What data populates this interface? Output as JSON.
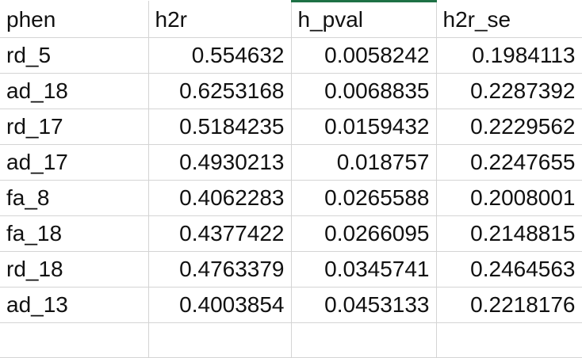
{
  "spreadsheet": {
    "selected_column_index": 2,
    "accent_color": "#1e7145",
    "columns": [
      "phen",
      "h2r",
      "h_pval",
      "h2r_se"
    ],
    "rows": [
      [
        "rd_5",
        "0.554632",
        "0.0058242",
        "0.1984113"
      ],
      [
        "ad_18",
        "0.6253168",
        "0.0068835",
        "0.2287392"
      ],
      [
        "rd_17",
        "0.5184235",
        "0.0159432",
        "0.2229562"
      ],
      [
        "ad_17",
        "0.4930213",
        "0.018757",
        "0.2247655"
      ],
      [
        "fa_8",
        "0.4062283",
        "0.0265588",
        "0.2008001"
      ],
      [
        "fa_18",
        "0.4377422",
        "0.0266095",
        "0.2148815"
      ],
      [
        "rd_18",
        "0.4763379",
        "0.0345741",
        "0.2464563"
      ],
      [
        "ad_13",
        "0.4003854",
        "0.0453133",
        "0.2218176"
      ]
    ]
  }
}
